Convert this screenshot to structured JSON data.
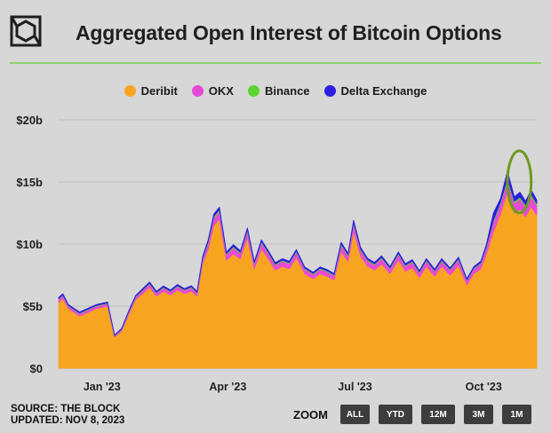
{
  "header": {
    "title": "Aggregated Open Interest of Bitcoin Options",
    "logo_icon": "cube-icon",
    "rule_color": "#8ed36a"
  },
  "footer": {
    "source": "SOURCE: THE BLOCK",
    "updated": "UPDATED: NOV 8, 2023"
  },
  "zoom": {
    "label": "ZOOM",
    "buttons": [
      "ALL",
      "YTD",
      "12M",
      "3M",
      "1M"
    ]
  },
  "chart_data": {
    "type": "area",
    "stacked": true,
    "x_start": "2022-12-01",
    "x_end": "2023-11-08",
    "x_ticks": [
      {
        "date": "2023-01-01",
        "label": "Jan '23"
      },
      {
        "date": "2023-04-01",
        "label": "Apr '23"
      },
      {
        "date": "2023-07-01",
        "label": "Jul '23"
      },
      {
        "date": "2023-10-01",
        "label": "Oct '23"
      }
    ],
    "ylim": [
      0,
      20
    ],
    "y_ticks": [
      {
        "value": 0,
        "label": "$0"
      },
      {
        "value": 5,
        "label": "$5b"
      },
      {
        "value": 10,
        "label": "$10b"
      },
      {
        "value": 15,
        "label": "$15b"
      },
      {
        "value": 20,
        "label": "$20b"
      }
    ],
    "grid": true,
    "legend_position": "top",
    "x": [
      "2022-12-01",
      "2022-12-04",
      "2022-12-08",
      "2022-12-12",
      "2022-12-16",
      "2022-12-20",
      "2022-12-24",
      "2022-12-28",
      "2023-01-01",
      "2023-01-05",
      "2023-01-10",
      "2023-01-15",
      "2023-01-20",
      "2023-01-25",
      "2023-01-30",
      "2023-02-04",
      "2023-02-09",
      "2023-02-14",
      "2023-02-19",
      "2023-02-24",
      "2023-03-01",
      "2023-03-06",
      "2023-03-10",
      "2023-03-14",
      "2023-03-18",
      "2023-03-22",
      "2023-03-26",
      "2023-03-31",
      "2023-04-05",
      "2023-04-10",
      "2023-04-15",
      "2023-04-20",
      "2023-04-25",
      "2023-04-30",
      "2023-05-05",
      "2023-05-10",
      "2023-05-15",
      "2023-05-20",
      "2023-05-26",
      "2023-06-01",
      "2023-06-06",
      "2023-06-11",
      "2023-06-16",
      "2023-06-21",
      "2023-06-26",
      "2023-06-30",
      "2023-07-05",
      "2023-07-10",
      "2023-07-15",
      "2023-07-20",
      "2023-07-26",
      "2023-08-01",
      "2023-08-06",
      "2023-08-11",
      "2023-08-16",
      "2023-08-21",
      "2023-08-27",
      "2023-09-01",
      "2023-09-07",
      "2023-09-13",
      "2023-09-19",
      "2023-09-24",
      "2023-09-29",
      "2023-10-03",
      "2023-10-08",
      "2023-10-13",
      "2023-10-18",
      "2023-10-23",
      "2023-10-27",
      "2023-10-31",
      "2023-11-04",
      "2023-11-08"
    ],
    "series": [
      {
        "name": "Deribit",
        "color": "#f7a521",
        "values": [
          5.3,
          5.6,
          4.8,
          4.5,
          4.2,
          4.4,
          4.6,
          4.8,
          4.9,
          5.0,
          2.5,
          3.0,
          4.3,
          5.5,
          6.0,
          6.5,
          5.8,
          6.2,
          5.9,
          6.3,
          6.0,
          6.2,
          5.8,
          8.4,
          9.6,
          11.5,
          12.0,
          8.7,
          9.2,
          8.8,
          10.5,
          8.0,
          9.6,
          8.8,
          7.9,
          8.2,
          8.0,
          8.9,
          7.6,
          7.2,
          7.6,
          7.4,
          7.1,
          9.4,
          8.6,
          11.0,
          9.0,
          8.2,
          7.9,
          8.4,
          7.6,
          8.7,
          7.8,
          8.1,
          7.3,
          8.2,
          7.4,
          8.2,
          7.5,
          8.3,
          6.7,
          7.6,
          8.0,
          9.2,
          11.0,
          12.4,
          14.2,
          12.5,
          12.8,
          12.2,
          13.0,
          12.3
        ]
      },
      {
        "name": "OKX",
        "color": "#e84ad8",
        "values": [
          0.25,
          0.25,
          0.2,
          0.2,
          0.2,
          0.2,
          0.2,
          0.2,
          0.2,
          0.2,
          0.1,
          0.12,
          0.18,
          0.22,
          0.25,
          0.28,
          0.26,
          0.27,
          0.26,
          0.28,
          0.27,
          0.28,
          0.25,
          0.4,
          0.5,
          0.6,
          0.65,
          0.45,
          0.5,
          0.45,
          0.55,
          0.4,
          0.5,
          0.45,
          0.4,
          0.42,
          0.42,
          0.45,
          0.38,
          0.36,
          0.38,
          0.37,
          0.36,
          0.5,
          0.45,
          0.6,
          0.48,
          0.44,
          0.42,
          0.45,
          0.4,
          0.46,
          0.42,
          0.44,
          0.38,
          0.43,
          0.39,
          0.43,
          0.4,
          0.44,
          0.35,
          0.4,
          0.42,
          0.55,
          0.75,
          0.8,
          0.9,
          0.8,
          0.82,
          0.8,
          0.85,
          0.8
        ]
      },
      {
        "name": "Binance",
        "color": "#5ad632",
        "values": [
          0.05,
          0.05,
          0.05,
          0.05,
          0.05,
          0.05,
          0.05,
          0.05,
          0.05,
          0.05,
          0.03,
          0.03,
          0.05,
          0.05,
          0.05,
          0.06,
          0.05,
          0.06,
          0.05,
          0.06,
          0.05,
          0.06,
          0.05,
          0.08,
          0.1,
          0.12,
          0.12,
          0.08,
          0.1,
          0.08,
          0.1,
          0.08,
          0.1,
          0.08,
          0.08,
          0.08,
          0.08,
          0.08,
          0.07,
          0.07,
          0.07,
          0.07,
          0.07,
          0.1,
          0.08,
          0.12,
          0.1,
          0.08,
          0.08,
          0.08,
          0.07,
          0.08,
          0.08,
          0.08,
          0.07,
          0.08,
          0.07,
          0.08,
          0.07,
          0.08,
          0.06,
          0.07,
          0.08,
          0.1,
          0.15,
          0.15,
          0.18,
          0.15,
          0.15,
          0.15,
          0.16,
          0.15
        ]
      },
      {
        "name": "Delta Exchange",
        "color": "#2d1fe0",
        "values": [
          0.1,
          0.1,
          0.08,
          0.08,
          0.08,
          0.08,
          0.08,
          0.08,
          0.08,
          0.08,
          0.05,
          0.05,
          0.07,
          0.08,
          0.1,
          0.1,
          0.09,
          0.1,
          0.09,
          0.1,
          0.09,
          0.1,
          0.09,
          0.12,
          0.15,
          0.2,
          0.2,
          0.13,
          0.15,
          0.13,
          0.15,
          0.12,
          0.14,
          0.13,
          0.12,
          0.12,
          0.12,
          0.13,
          0.11,
          0.1,
          0.11,
          0.11,
          0.1,
          0.14,
          0.13,
          0.2,
          0.15,
          0.12,
          0.12,
          0.13,
          0.11,
          0.13,
          0.12,
          0.12,
          0.11,
          0.12,
          0.11,
          0.12,
          0.11,
          0.12,
          0.1,
          0.11,
          0.12,
          0.15,
          0.6,
          0.3,
          0.6,
          0.35,
          0.4,
          0.3,
          0.35,
          0.3
        ]
      }
    ],
    "annotation": {
      "type": "ellipse",
      "color": "#6d9a21",
      "date_range": [
        "2023-10-18",
        "2023-11-04"
      ],
      "value_range": [
        12.5,
        17.5
      ]
    }
  }
}
